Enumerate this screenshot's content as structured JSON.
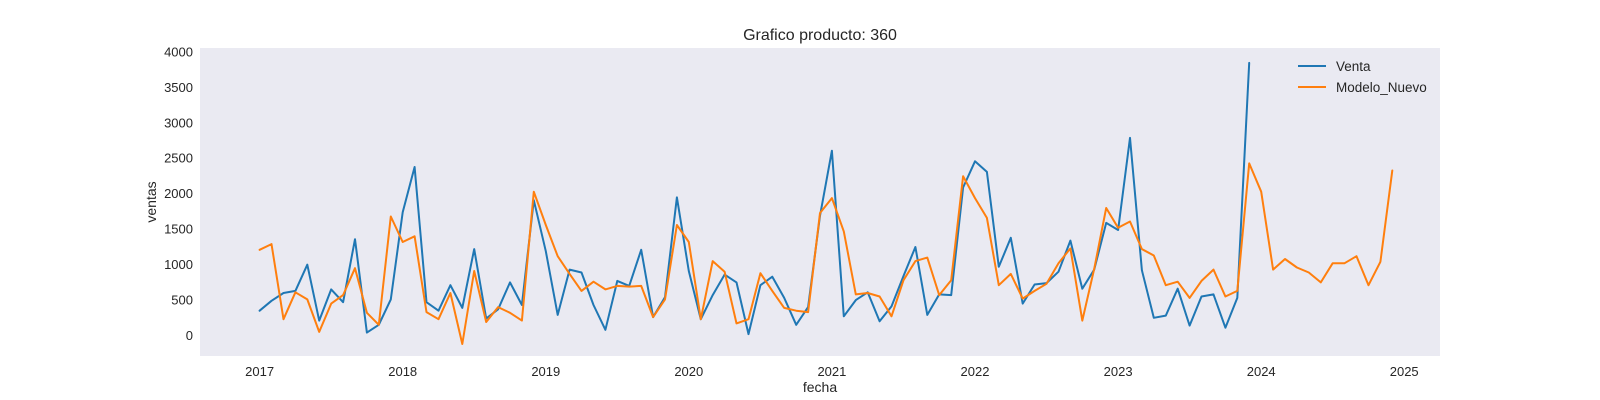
{
  "chart_data": {
    "type": "line",
    "title": "Grafico producto: 360",
    "xlabel": "fecha",
    "ylabel": "ventas",
    "x_ticks": [
      "2017",
      "2018",
      "2019",
      "2020",
      "2021",
      "2022",
      "2023",
      "2024",
      "2025"
    ],
    "y_ticks": [
      "0",
      "500",
      "1000",
      "1500",
      "2000",
      "2500",
      "3000",
      "3500",
      "4000"
    ],
    "xlim": [
      "2016-08",
      "2025-04"
    ],
    "ylim": [
      -300,
      4050
    ],
    "grid": false,
    "legend": "top-right",
    "series": [
      {
        "name": "Venta",
        "color": "#1f77b4",
        "start": "2017-01",
        "values": [
          340,
          480,
          590,
          620,
          990,
          200,
          640,
          460,
          1350,
          30,
          140,
          500,
          1730,
          2370,
          460,
          340,
          700,
          380,
          1210,
          230,
          360,
          740,
          420,
          1900,
          1180,
          280,
          920,
          880,
          420,
          70,
          760,
          690,
          1200,
          250,
          530,
          1940,
          900,
          220,
          560,
          850,
          740,
          10,
          700,
          820,
          520,
          140,
          390,
          1680,
          2600,
          260,
          490,
          600,
          190,
          400,
          830,
          1240,
          280,
          570,
          560,
          2080,
          2450,
          2300,
          960,
          1370,
          440,
          710,
          730,
          890,
          1330,
          650,
          920,
          1580,
          1480,
          2780,
          910,
          240,
          270,
          650,
          130,
          540,
          570,
          100,
          520,
          3840
        ]
      },
      {
        "name": "Modelo_Nuevo",
        "color": "#ff7f0e",
        "start": "2017-01",
        "values": [
          1200,
          1280,
          220,
          600,
          500,
          40,
          440,
          560,
          940,
          310,
          140,
          1670,
          1310,
          1390,
          320,
          220,
          590,
          -130,
          900,
          180,
          390,
          310,
          200,
          2020,
          1550,
          1110,
          860,
          620,
          750,
          640,
          690,
          680,
          690,
          250,
          500,
          1550,
          1310,
          220,
          1040,
          890,
          160,
          220,
          870,
          620,
          380,
          340,
          320,
          1720,
          1930,
          1460,
          570,
          590,
          540,
          260,
          770,
          1040,
          1090,
          560,
          770,
          2240,
          1930,
          1650,
          700,
          860,
          510,
          620,
          720,
          1010,
          1220,
          200,
          930,
          1790,
          1510,
          1600,
          1210,
          1120,
          700,
          750,
          520,
          760,
          920,
          540,
          620,
          2420,
          2020,
          920,
          1070,
          950,
          880,
          740,
          1010,
          1010,
          1110,
          700,
          1030,
          2320
        ]
      }
    ]
  }
}
